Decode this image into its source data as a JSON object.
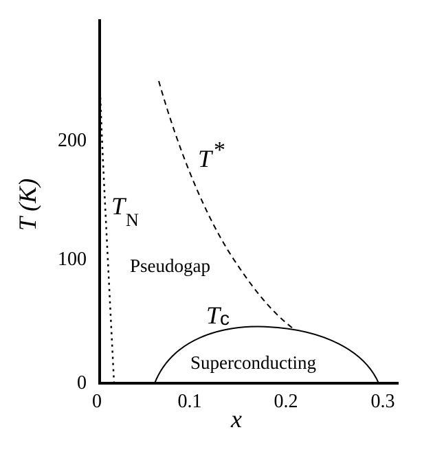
{
  "axes": {
    "x_label": "x",
    "y_label": "T (K)",
    "x_ticks": [
      "0",
      "0.1",
      "0.2",
      "0.3"
    ],
    "y_ticks": [
      "0",
      "100",
      "200"
    ]
  },
  "curves": {
    "neel": {
      "label_main": "T",
      "label_sub": "N",
      "style": "dotted"
    },
    "pseudogap": {
      "label_main": "T",
      "label_sup": "*",
      "style": "dashed"
    },
    "superconducting": {
      "label_main": "T",
      "label_sub": "c",
      "style": "solid"
    }
  },
  "regions": {
    "pseudogap": "Pseudogap",
    "superconducting": "Superconducting"
  }
}
